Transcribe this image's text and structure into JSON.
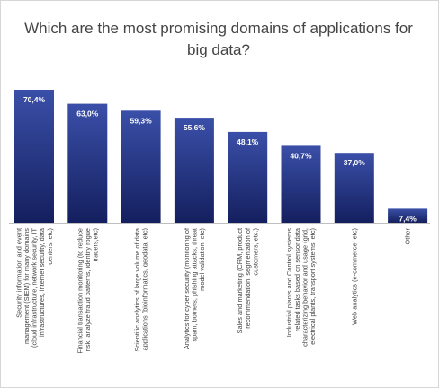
{
  "chart_data": {
    "type": "bar",
    "title": "Which are the most promising domains of applications for big data?",
    "categories": [
      "Security information and event management (SIEM) for many domains (cloud infrastructure, network security, IT infrastructures, internet security, data centers, etc)",
      "Financial transaction monitoring (to reduce risk, analyze fraud patterns, identify rogue traders,etc)",
      "Scientific analytics of large volume of data applications (bioinformatics, geodata, etc)",
      "Analytics for cyber security (monitoring of spam, botnets, phishing attacks, threat model validation, etc)",
      "Sales and marketing (CRM, product recommendation, segmentation of customers, etc.)",
      "Industrial plants and Control systems related tasks based on sensor data characterizing behavior and usage (grid, electrical plants, transport systems, etc)",
      "Web analytics (e-commerce, etc)",
      "Other"
    ],
    "category_lines": [
      [
        "Security information and event",
        "management (SIEM) for many domains",
        "(cloud infrastructure, network security, IT",
        "infrastructures, internet security, data",
        "centers, etc)"
      ],
      [
        "Financial transaction monitoring (to reduce",
        "risk, analyze fraud patterns, identify rogue",
        "traders,etc)"
      ],
      [
        "Scientific analytics of large volume of data",
        "applications (bioinformatics, geodata, etc)"
      ],
      [
        "Analytics for cyber security (monitoring of",
        "spam, botnets, phishing attacks, threat",
        "model validation, etc)"
      ],
      [
        "Sales and marketing (CRM, product",
        "recommendation, segmentation of",
        "customers, etc.)"
      ],
      [
        "Industrial plants and Control systems",
        "related tasks based on sensor data",
        "characterizing behavior and usage (grid,",
        "electrical plants, transport systems, etc)"
      ],
      [
        "Web analytics (e-commerce, etc)"
      ],
      [
        "Other"
      ]
    ],
    "values": [
      70.4,
      63.0,
      59.3,
      55.6,
      48.1,
      40.7,
      37.0,
      7.4
    ],
    "data_labels": [
      "70,4%",
      "63,0%",
      "59,3%",
      "55,6%",
      "48,1%",
      "40,7%",
      "37,0%",
      "7,4%"
    ],
    "ylim": [
      0,
      80
    ],
    "grid": false,
    "legend": "none",
    "colors": {
      "bar_top": "#3a4fa8",
      "bar_bottom": "#141f5e",
      "label_text": "#ffffff",
      "axis_text": "#444444",
      "baseline": "#bfbfbf"
    }
  }
}
